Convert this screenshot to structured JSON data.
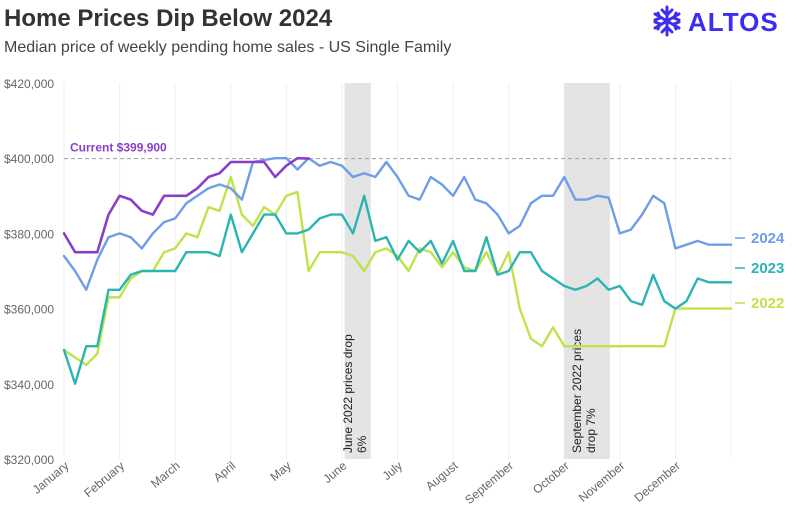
{
  "header": {
    "title": "Home Prices Dip Below 2024",
    "subtitle": "Median price of weekly pending home sales - US Single Family"
  },
  "brand": {
    "name": "ALTOS",
    "icon": "snowflake-logo-icon",
    "color": "#3d2df0"
  },
  "colors": {
    "y2024": "#6f9de8",
    "y2023": "#2bb5b0",
    "y2022": "#bfe34a",
    "current": "#8a3fc8",
    "shade": "#e4e4e4",
    "axis_text": "#666666",
    "reference_line": "#aaaaaa"
  },
  "chart_data": {
    "type": "line",
    "title": "Home Prices Dip Below 2024",
    "subtitle": "Median price of weekly pending home sales - US Single Family",
    "xlabel": "",
    "ylabel": "",
    "ylim": [
      320000,
      420000
    ],
    "xlim": [
      0,
      12
    ],
    "y_ticks": [
      320000,
      340000,
      360000,
      380000,
      400000,
      420000
    ],
    "y_tick_labels": [
      "$320,000",
      "$340,000",
      "$360,000",
      "$380,000",
      "$400,000",
      "$420,000"
    ],
    "x_tick_labels": [
      "January",
      "February",
      "March",
      "April",
      "May",
      "June",
      "July",
      "August",
      "September",
      "October",
      "November",
      "December"
    ],
    "grid": "vertical month lines",
    "reference_line": {
      "value": 399900,
      "label": "Current $399,900"
    },
    "shaded_regions": [
      {
        "x0": 5.05,
        "x1": 5.52,
        "label": "June 2022 prices drop 6%"
      },
      {
        "x0": 9.0,
        "x1": 9.82,
        "label": "September 2022 prices drop 7%"
      }
    ],
    "series": [
      {
        "name": "2024",
        "x": [
          0,
          0.2,
          0.4,
          0.6,
          0.8,
          1.0,
          1.2,
          1.4,
          1.6,
          1.8,
          2.0,
          2.2,
          2.4,
          2.6,
          2.8,
          3.0,
          3.2,
          3.4,
          3.6,
          3.8,
          4.0,
          4.2,
          4.4,
          4.6,
          4.8,
          5.0,
          5.2,
          5.4,
          5.6,
          5.8,
          6.0,
          6.2,
          6.4,
          6.6,
          6.8,
          7.0,
          7.2,
          7.4,
          7.6,
          7.8,
          8.0,
          8.2,
          8.4,
          8.6,
          8.8,
          9.0,
          9.2,
          9.4,
          9.6,
          9.8,
          10.0,
          10.2,
          10.4,
          10.6,
          10.8,
          11.0,
          11.2,
          11.4,
          11.6,
          11.8,
          12.0
        ],
        "values": [
          374000,
          370000,
          365000,
          373000,
          379000,
          380000,
          379000,
          376000,
          380000,
          383000,
          384000,
          388000,
          390000,
          392000,
          393000,
          392000,
          389000,
          399000,
          399500,
          400000,
          400000,
          397000,
          400000,
          398000,
          399000,
          398000,
          395000,
          396000,
          395000,
          399000,
          395000,
          390000,
          389000,
          395000,
          393000,
          390000,
          395000,
          389000,
          388000,
          385000,
          380000,
          382000,
          388000,
          390000,
          390000,
          395000,
          389000,
          389000,
          390000,
          389500,
          380000,
          381000,
          385000,
          390000,
          388000,
          376000,
          377000,
          378000,
          377000,
          377000,
          377000
        ]
      },
      {
        "name": "2023",
        "x": [
          0,
          0.2,
          0.4,
          0.6,
          0.8,
          1.0,
          1.2,
          1.4,
          1.6,
          1.8,
          2.0,
          2.2,
          2.4,
          2.6,
          2.8,
          3.0,
          3.2,
          3.4,
          3.6,
          3.8,
          4.0,
          4.2,
          4.4,
          4.6,
          4.8,
          5.0,
          5.2,
          5.4,
          5.6,
          5.8,
          6.0,
          6.2,
          6.4,
          6.6,
          6.8,
          7.0,
          7.2,
          7.4,
          7.6,
          7.8,
          8.0,
          8.2,
          8.4,
          8.6,
          8.8,
          9.0,
          9.2,
          9.4,
          9.6,
          9.8,
          10.0,
          10.2,
          10.4,
          10.6,
          10.8,
          11.0,
          11.2,
          11.4,
          11.6,
          11.8,
          12.0
        ],
        "values": [
          349000,
          340000,
          350000,
          350000,
          365000,
          365000,
          369000,
          370000,
          370000,
          370000,
          370000,
          375000,
          375000,
          375000,
          374000,
          385000,
          375000,
          380000,
          385000,
          385000,
          380000,
          380000,
          381000,
          384000,
          385000,
          385000,
          380000,
          390000,
          378000,
          379000,
          373000,
          378000,
          375000,
          378000,
          372000,
          378000,
          370000,
          370000,
          379000,
          369000,
          370000,
          375000,
          375000,
          370000,
          368000,
          366000,
          365000,
          366000,
          368000,
          365000,
          366000,
          362000,
          361000,
          369000,
          362000,
          360000,
          362000,
          368000,
          367000,
          367000,
          367000
        ]
      },
      {
        "name": "2022",
        "x": [
          0,
          0.2,
          0.4,
          0.6,
          0.8,
          1.0,
          1.2,
          1.4,
          1.6,
          1.8,
          2.0,
          2.2,
          2.4,
          2.6,
          2.8,
          3.0,
          3.2,
          3.4,
          3.6,
          3.8,
          4.0,
          4.2,
          4.4,
          4.6,
          4.8,
          5.0,
          5.2,
          5.4,
          5.6,
          5.8,
          6.0,
          6.2,
          6.4,
          6.6,
          6.8,
          7.0,
          7.2,
          7.4,
          7.6,
          7.8,
          8.0,
          8.2,
          8.4,
          8.6,
          8.8,
          9.0,
          9.2,
          9.4,
          9.6,
          9.8,
          10.0,
          10.2,
          10.4,
          10.6,
          10.8,
          11.0,
          11.2,
          11.4,
          11.6,
          11.8,
          12.0
        ],
        "values": [
          349000,
          347000,
          345000,
          348000,
          363000,
          363000,
          368000,
          370000,
          370000,
          375000,
          376000,
          380000,
          379000,
          387000,
          386000,
          395000,
          385000,
          382000,
          387000,
          385000,
          390000,
          391000,
          370000,
          375000,
          375000,
          375000,
          374000,
          370000,
          375000,
          376000,
          374000,
          370000,
          376000,
          375000,
          371000,
          375000,
          371000,
          370000,
          375000,
          369000,
          375000,
          360000,
          352000,
          350000,
          355000,
          350000,
          350000,
          350000,
          350000,
          350000,
          350000,
          350000,
          350000,
          350000,
          350000,
          360000,
          360000,
          360000,
          360000,
          360000,
          360000
        ]
      },
      {
        "name": "Current",
        "x": [
          0,
          0.2,
          0.4,
          0.6,
          0.8,
          1.0,
          1.2,
          1.4,
          1.6,
          1.8,
          2.0,
          2.2,
          2.4,
          2.6,
          2.8,
          3.0,
          3.2,
          3.4,
          3.6,
          3.8,
          4.0,
          4.2,
          4.4
        ],
        "values": [
          380000,
          375000,
          375000,
          375000,
          385000,
          390000,
          389000,
          386000,
          385000,
          390000,
          390000,
          390000,
          392000,
          395000,
          396000,
          399000,
          399000,
          399000,
          399000,
          395000,
          398000,
          400000,
          399900
        ]
      }
    ],
    "end_labels": [
      "2024",
      "2023",
      "2022"
    ]
  }
}
